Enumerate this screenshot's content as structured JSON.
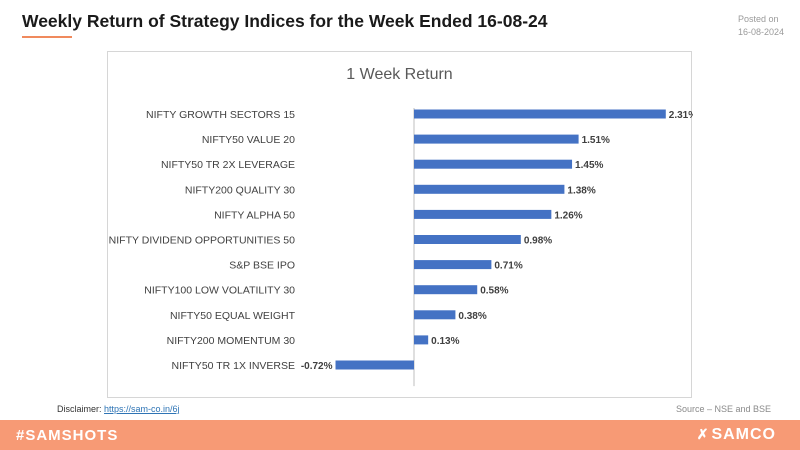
{
  "header": {
    "title": "Weekly Return of Strategy Indices for the Week Ended 16-08-24",
    "posted_label": "Posted on",
    "posted_date": "16-08-2024"
  },
  "footer": {
    "disclaimer_label": "Disclaimer:",
    "disclaimer_link": "https://sam-co.in/6j",
    "source": "Source – NSE and BSE",
    "hashtag": "#SAMSHOTS",
    "brand": "SAMCO",
    "brand_icon": "samco-logo-icon"
  },
  "colors": {
    "bar": "#4472c4",
    "footer_band": "#f79a75",
    "accent": "#f08a5d"
  },
  "chart_data": {
    "type": "bar",
    "orientation": "horizontal",
    "title": "1 Week Return",
    "xlabel": "",
    "ylabel": "",
    "grid": false,
    "legend": "none",
    "categories": [
      "NIFTY GROWTH SECTORS 15",
      "NIFTY50 VALUE 20",
      "NIFTY50 TR 2X LEVERAGE",
      "NIFTY200 QUALITY 30",
      "NIFTY ALPHA 50",
      "NIFTY DIVIDEND OPPORTUNITIES 50",
      "S&P BSE IPO",
      "NIFTY100 LOW VOLATILITY 30",
      "NIFTY50 EQUAL WEIGHT",
      "NIFTY200 MOMENTUM 30",
      "NIFTY50 TR 1X INVERSE"
    ],
    "values": [
      2.31,
      1.51,
      1.45,
      1.38,
      1.26,
      0.98,
      0.71,
      0.58,
      0.38,
      0.13,
      -0.72
    ],
    "value_labels": [
      "2.31%",
      "1.51%",
      "1.45%",
      "1.38%",
      "1.26%",
      "0.98%",
      "0.71%",
      "0.58%",
      "0.38%",
      "0.13%",
      "-0.72%"
    ],
    "xlim": [
      -0.72,
      2.31
    ]
  }
}
